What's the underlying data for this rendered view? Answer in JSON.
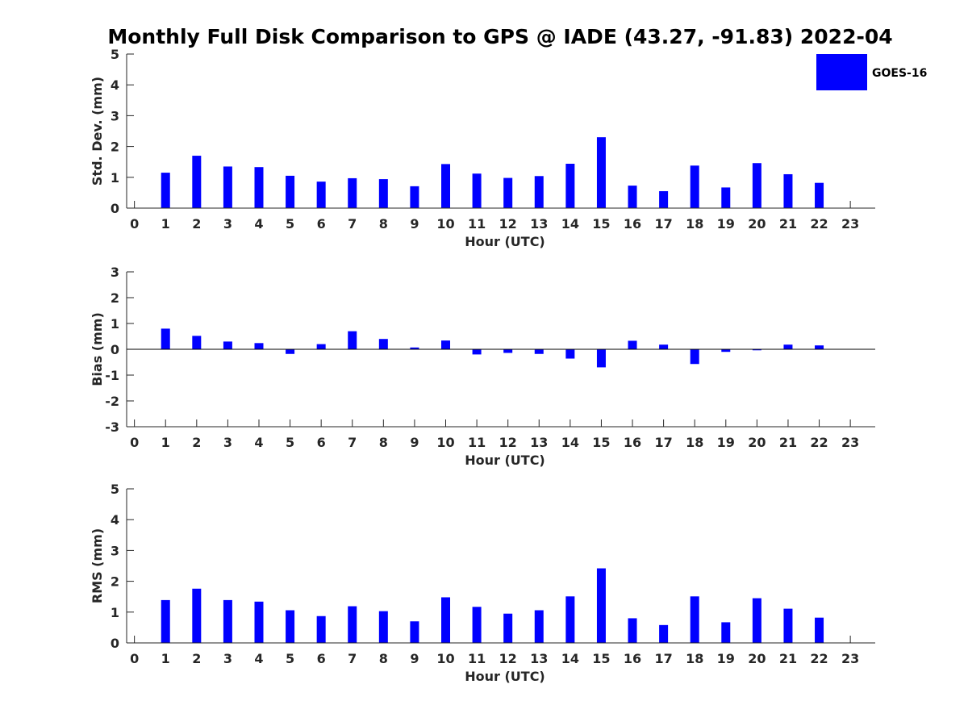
{
  "title": "Monthly Full Disk Comparison to GPS @ IADE (43.27, -91.83) 2022-04",
  "legend": {
    "label": "GOES-16",
    "color": "#0000ff"
  },
  "chart_data": [
    {
      "type": "bar",
      "name": "std-dev",
      "xlabel": "Hour (UTC)",
      "ylabel": "Std. Dev. (mm)",
      "ylim": [
        0,
        5
      ],
      "yticks": [
        "0",
        "1",
        "2",
        "3",
        "4",
        "5"
      ],
      "xlim": [
        -0.25,
        23.8
      ],
      "categories": [
        "0",
        "1",
        "2",
        "3",
        "4",
        "5",
        "6",
        "7",
        "8",
        "9",
        "10",
        "11",
        "12",
        "13",
        "14",
        "15",
        "16",
        "17",
        "18",
        "19",
        "20",
        "21",
        "22",
        "23"
      ],
      "values": [
        null,
        1.15,
        1.7,
        1.35,
        1.33,
        1.05,
        0.86,
        0.97,
        0.94,
        0.71,
        1.43,
        1.12,
        0.98,
        1.04,
        1.44,
        2.3,
        0.73,
        0.55,
        1.38,
        0.67,
        1.46,
        1.1,
        0.82,
        null
      ],
      "series_name": "GOES-16",
      "color": "#0000ff"
    },
    {
      "type": "bar",
      "name": "bias",
      "xlabel": "Hour (UTC)",
      "ylabel": "Bias (mm)",
      "ylim": [
        -3,
        3
      ],
      "yticks": [
        "-3",
        "-2",
        "-1",
        "0",
        "1",
        "2",
        "3"
      ],
      "xlim": [
        -0.25,
        23.8
      ],
      "categories": [
        "0",
        "1",
        "2",
        "3",
        "4",
        "5",
        "6",
        "7",
        "8",
        "9",
        "10",
        "11",
        "12",
        "13",
        "14",
        "15",
        "16",
        "17",
        "18",
        "19",
        "20",
        "21",
        "22",
        "23"
      ],
      "values": [
        null,
        0.8,
        0.52,
        0.3,
        0.24,
        -0.18,
        0.2,
        0.7,
        0.4,
        0.07,
        0.34,
        -0.2,
        -0.14,
        -0.18,
        -0.36,
        -0.7,
        0.33,
        0.18,
        -0.57,
        -0.1,
        -0.04,
        0.18,
        0.15,
        null
      ],
      "series_name": "GOES-16",
      "color": "#0000ff"
    },
    {
      "type": "bar",
      "name": "rms",
      "xlabel": "Hour (UTC)",
      "ylabel": "RMS (mm)",
      "ylim": [
        0,
        5
      ],
      "yticks": [
        "0",
        "1",
        "2",
        "3",
        "4",
        "5"
      ],
      "xlim": [
        -0.25,
        23.8
      ],
      "categories": [
        "0",
        "1",
        "2",
        "3",
        "4",
        "5",
        "6",
        "7",
        "8",
        "9",
        "10",
        "11",
        "12",
        "13",
        "14",
        "15",
        "16",
        "17",
        "18",
        "19",
        "20",
        "21",
        "22",
        "23"
      ],
      "values": [
        null,
        1.39,
        1.76,
        1.39,
        1.34,
        1.06,
        0.87,
        1.19,
        1.03,
        0.7,
        1.48,
        1.17,
        0.95,
        1.06,
        1.51,
        2.42,
        0.8,
        0.58,
        1.51,
        0.67,
        1.45,
        1.11,
        0.82,
        null
      ],
      "series_name": "GOES-16",
      "color": "#0000ff"
    }
  ]
}
